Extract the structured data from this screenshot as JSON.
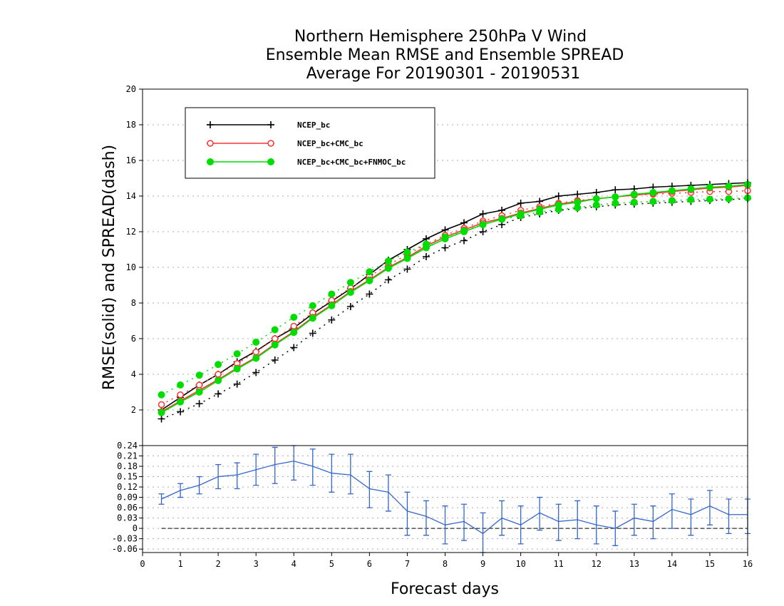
{
  "chart_data": [
    {
      "type": "line",
      "title": [
        "Northern Hemisphere 250hPa V Wind",
        "Ensemble Mean RMSE and Ensemble SPREAD",
        "Average For 20190301 - 20190531"
      ],
      "ylabel": "RMSE(solid) and SPREAD(dash)",
      "ylim": [
        0,
        20
      ],
      "yticks": [
        "2",
        "4",
        "6",
        "8",
        "10",
        "12",
        "14",
        "16",
        "18",
        "20"
      ],
      "xlim": [
        0,
        16
      ],
      "grid": true,
      "legend_placement": "top-left",
      "x": [
        0.5,
        1.0,
        1.5,
        2.0,
        2.5,
        3.0,
        3.5,
        4.0,
        4.5,
        5.0,
        5.5,
        6.0,
        6.5,
        7.0,
        7.5,
        8.0,
        8.5,
        9.0,
        9.5,
        10.0,
        10.5,
        11.0,
        11.5,
        12.0,
        12.5,
        13.0,
        13.5,
        14.0,
        14.5,
        15.0,
        15.5,
        16.0
      ],
      "series": [
        {
          "name": "NCEP_bc",
          "color": "#000000",
          "marker": "plus",
          "rmse": [
            2.0,
            2.7,
            3.4,
            4.0,
            4.7,
            5.3,
            6.0,
            6.6,
            7.4,
            8.1,
            8.8,
            9.6,
            10.4,
            11.0,
            11.6,
            12.1,
            12.5,
            13.0,
            13.2,
            13.6,
            13.7,
            14.0,
            14.1,
            14.2,
            14.35,
            14.4,
            14.5,
            14.55,
            14.6,
            14.65,
            14.7,
            14.75
          ],
          "spread": [
            1.5,
            1.9,
            2.35,
            2.9,
            3.45,
            4.1,
            4.8,
            5.5,
            6.3,
            7.05,
            7.8,
            8.5,
            9.3,
            9.9,
            10.6,
            11.1,
            11.5,
            12.0,
            12.4,
            12.8,
            13.0,
            13.2,
            13.3,
            13.4,
            13.5,
            13.55,
            13.6,
            13.65,
            13.7,
            13.75,
            13.8,
            13.85
          ]
        },
        {
          "name": "NCEP_bc+CMC_bc",
          "color": "#ff3333",
          "marker": "open-circle",
          "rmse": [
            1.9,
            2.5,
            3.1,
            3.7,
            4.35,
            4.95,
            5.7,
            6.4,
            7.2,
            7.9,
            8.65,
            9.3,
            10.0,
            10.55,
            11.2,
            11.7,
            12.1,
            12.5,
            12.75,
            13.05,
            13.3,
            13.55,
            13.7,
            13.85,
            13.95,
            14.05,
            14.15,
            14.25,
            14.35,
            14.45,
            14.5,
            14.6
          ],
          "spread": [
            2.3,
            2.85,
            3.4,
            4.0,
            4.6,
            5.25,
            6.0,
            6.7,
            7.45,
            8.15,
            8.85,
            9.5,
            10.15,
            10.7,
            11.3,
            11.8,
            12.2,
            12.6,
            12.9,
            13.2,
            13.4,
            13.6,
            13.75,
            13.85,
            13.95,
            14.05,
            14.1,
            14.15,
            14.2,
            14.25,
            14.25,
            14.3
          ]
        },
        {
          "name": "NCEP_bc+CMC_bc+FNMOC_bc",
          "color": "#00dd00",
          "marker": "filled-circle",
          "rmse": [
            1.85,
            2.45,
            3.0,
            3.65,
            4.3,
            4.9,
            5.65,
            6.35,
            7.15,
            7.85,
            8.6,
            9.25,
            9.95,
            10.5,
            11.1,
            11.6,
            12.0,
            12.4,
            12.7,
            13.0,
            13.25,
            13.5,
            13.65,
            13.85,
            13.95,
            14.1,
            14.2,
            14.3,
            14.4,
            14.5,
            14.55,
            14.65
          ],
          "spread": [
            2.85,
            3.4,
            3.95,
            4.55,
            5.15,
            5.8,
            6.5,
            7.2,
            7.85,
            8.5,
            9.15,
            9.75,
            10.35,
            10.85,
            11.3,
            11.7,
            12.05,
            12.4,
            12.7,
            12.9,
            13.1,
            13.25,
            13.35,
            13.5,
            13.6,
            13.65,
            13.7,
            13.75,
            13.8,
            13.82,
            13.85,
            13.9
          ]
        }
      ]
    },
    {
      "type": "line",
      "xlabel": "Forecast days",
      "xticks": [
        "0",
        "1",
        "2",
        "3",
        "4",
        "5",
        "6",
        "7",
        "8",
        "9",
        "10",
        "11",
        "12",
        "13",
        "14",
        "15",
        "16"
      ],
      "ylim": [
        -0.07,
        0.24
      ],
      "yticks": [
        "0.24",
        "0.21",
        "0.18",
        "0.15",
        "0.12",
        "0.09",
        "0.06",
        "0.03",
        "0",
        "-0.03",
        "-0.06"
      ],
      "grid": true,
      "reference_line": 0,
      "series": [
        {
          "color": "#3366cc",
          "error_bars": true,
          "x": [
            0.5,
            1.0,
            1.5,
            2.0,
            2.5,
            3.0,
            3.5,
            4.0,
            4.5,
            5.0,
            5.5,
            6.0,
            6.5,
            7.0,
            7.5,
            8.0,
            8.5,
            9.0,
            9.5,
            10.0,
            10.5,
            11.0,
            11.5,
            12.0,
            12.5,
            13.0,
            13.5,
            14.0,
            14.5,
            15.0,
            15.5,
            16.0
          ],
          "values": [
            0.085,
            0.11,
            0.125,
            0.15,
            0.155,
            0.17,
            0.185,
            0.195,
            0.18,
            0.16,
            0.155,
            0.115,
            0.105,
            0.05,
            0.035,
            0.01,
            0.02,
            -0.015,
            0.03,
            0.01,
            0.045,
            0.02,
            0.025,
            0.01,
            0.0,
            0.03,
            0.02,
            0.055,
            0.04,
            0.065,
            0.04,
            0.04
          ],
          "lower": [
            0.07,
            0.09,
            0.1,
            0.115,
            0.115,
            0.125,
            0.13,
            0.14,
            0.125,
            0.105,
            0.1,
            0.06,
            0.05,
            -0.02,
            -0.02,
            -0.045,
            -0.035,
            -0.075,
            -0.02,
            -0.045,
            -0.005,
            -0.035,
            -0.03,
            -0.045,
            -0.05,
            -0.02,
            -0.03,
            0.0,
            -0.02,
            0.01,
            -0.015,
            -0.015
          ],
          "upper": [
            0.1,
            0.13,
            0.15,
            0.185,
            0.19,
            0.215,
            0.235,
            0.24,
            0.23,
            0.215,
            0.215,
            0.165,
            0.155,
            0.105,
            0.08,
            0.065,
            0.07,
            0.045,
            0.08,
            0.065,
            0.09,
            0.07,
            0.08,
            0.065,
            0.05,
            0.07,
            0.065,
            0.1,
            0.085,
            0.11,
            0.085,
            0.085
          ]
        }
      ]
    }
  ]
}
